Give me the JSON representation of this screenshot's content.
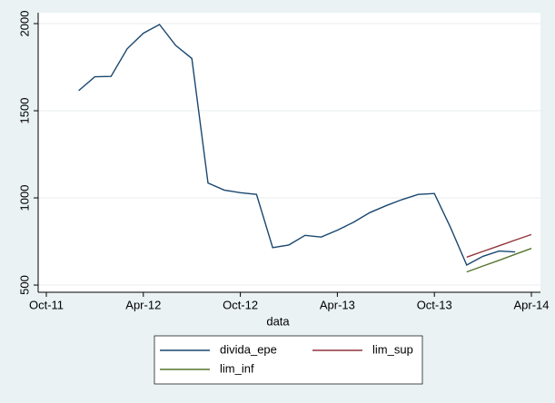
{
  "chart_data": {
    "type": "line",
    "x_label": "data",
    "x": [
      "2011-12",
      "2012-01",
      "2012-02",
      "2012-03",
      "2012-04",
      "2012-05",
      "2012-06",
      "2012-07",
      "2012-08",
      "2012-09",
      "2012-10",
      "2012-11",
      "2012-12",
      "2013-01",
      "2013-02",
      "2013-03",
      "2013-04",
      "2013-05",
      "2013-06",
      "2013-07",
      "2013-08",
      "2013-09",
      "2013-10",
      "2013-11",
      "2013-12",
      "2014-01",
      "2014-02",
      "2014-03",
      "2014-04"
    ],
    "series": [
      {
        "name": "divida_epe",
        "color": "#1a476f",
        "values": [
          1615,
          1695,
          1697,
          1855,
          1945,
          1995,
          1875,
          1800,
          1085,
          1045,
          1030,
          1020,
          715,
          730,
          785,
          775,
          815,
          860,
          915,
          955,
          990,
          1020,
          1025,
          830,
          615,
          665,
          695,
          690,
          null
        ]
      },
      {
        "name": "lim_sup",
        "color": "#90353b",
        "values": [
          null,
          null,
          null,
          null,
          null,
          null,
          null,
          null,
          null,
          null,
          null,
          null,
          null,
          null,
          null,
          null,
          null,
          null,
          null,
          null,
          null,
          null,
          null,
          null,
          660,
          693,
          725,
          758,
          790
        ]
      },
      {
        "name": "lim_inf",
        "color": "#55752f",
        "values": [
          null,
          null,
          null,
          null,
          null,
          null,
          null,
          null,
          null,
          null,
          null,
          null,
          null,
          null,
          null,
          null,
          null,
          null,
          null,
          null,
          null,
          null,
          null,
          null,
          575,
          609,
          642,
          676,
          710
        ]
      }
    ],
    "xlim": [
      "2011-10",
      "2014-04"
    ],
    "xticks": [
      {
        "value": "2011-10",
        "label": "Oct-11"
      },
      {
        "value": "2012-04",
        "label": "Apr-12"
      },
      {
        "value": "2012-10",
        "label": "Oct-12"
      },
      {
        "value": "2013-04",
        "label": "Apr-13"
      },
      {
        "value": "2013-10",
        "label": "Oct-13"
      },
      {
        "value": "2014-04",
        "label": "Apr-14"
      }
    ],
    "ylim": [
      470,
      2050
    ],
    "yticks": [
      500,
      1000,
      1500,
      2000
    ],
    "grid": true
  }
}
